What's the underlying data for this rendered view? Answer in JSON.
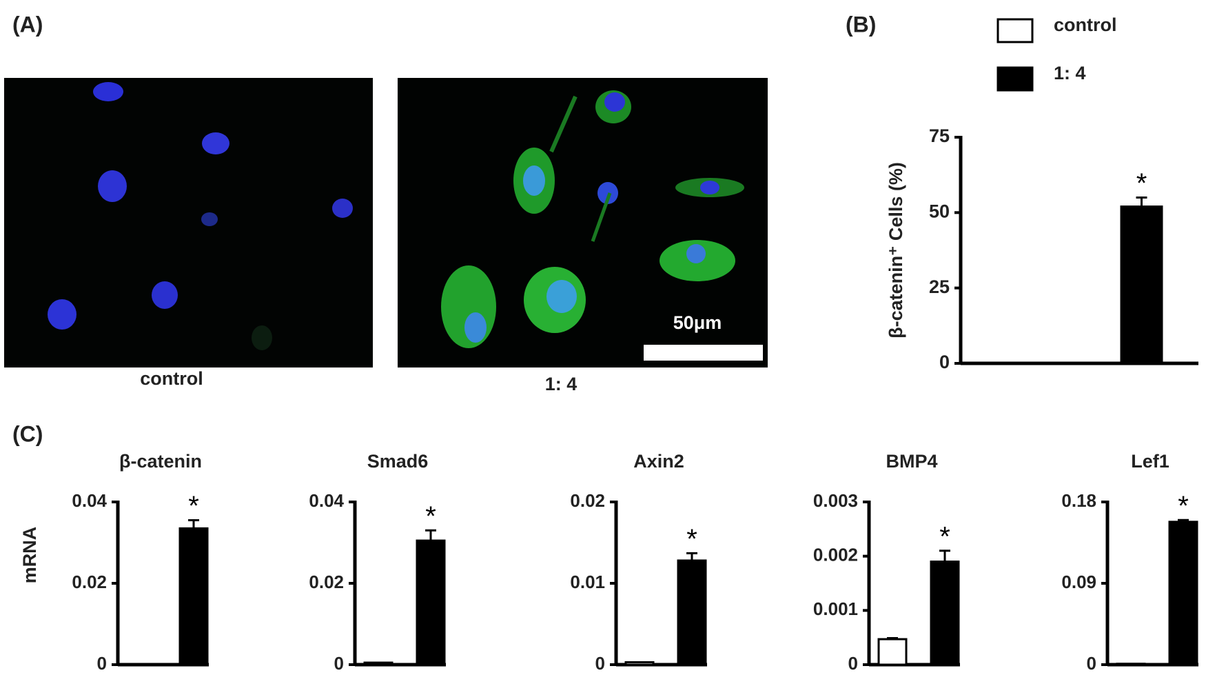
{
  "panel_labels": [
    "(A)",
    "(B)",
    "(C)"
  ],
  "images": [
    {
      "caption": "control"
    },
    {
      "caption": "1: 4",
      "scale_bar": "50μm"
    }
  ],
  "chart_data": [
    {
      "type": "bar",
      "ylabel": "β-catenin⁺ Cells  (%)",
      "legend": [
        {
          "label": "control",
          "color": "#ffffff"
        },
        {
          "label": "1: 4",
          "color": "#000000"
        }
      ],
      "values": [
        0,
        52
      ],
      "errors": [
        null,
        3
      ],
      "colors": [
        "#ffffff",
        "#000000"
      ],
      "annotation": "*",
      "ylim": [
        0,
        75
      ],
      "yticks": [
        0,
        25,
        50,
        75
      ]
    },
    {
      "type": "bar",
      "title": "β-catenin",
      "ylabel": "mRNA",
      "values": [
        0,
        0.0335
      ],
      "errors": [
        null,
        0.002
      ],
      "colors": [
        "#ffffff",
        "#000000"
      ],
      "annotation": "*",
      "ylim": [
        0,
        0.04
      ],
      "yticks": [
        0,
        0.02,
        0.04
      ]
    },
    {
      "type": "bar",
      "title": "Smad6",
      "values": [
        0.0005,
        0.0305
      ],
      "errors": [
        null,
        0.0025
      ],
      "colors": [
        "#ffffff",
        "#000000"
      ],
      "annotation": "*",
      "ylim": [
        0,
        0.04
      ],
      "yticks": [
        0,
        0.02,
        0.04
      ]
    },
    {
      "type": "bar",
      "title": "Axin2",
      "values": [
        0.0003,
        0.0128
      ],
      "errors": [
        null,
        0.0009
      ],
      "colors": [
        "#ffffff",
        "#000000"
      ],
      "annotation": "*",
      "ylim": [
        0,
        0.02
      ],
      "yticks": [
        0,
        0.01,
        0.02
      ]
    },
    {
      "type": "bar",
      "title": "BMP4",
      "values": [
        0.00047,
        0.0019
      ],
      "errors": [
        2e-05,
        0.0002
      ],
      "colors": [
        "#ffffff",
        "#000000"
      ],
      "annotation": "*",
      "ylim": [
        0,
        0.003
      ],
      "yticks": [
        0,
        0.001,
        0.002,
        0.003
      ]
    },
    {
      "type": "bar",
      "title": "Lef1",
      "values": [
        0.001,
        0.158
      ],
      "errors": [
        null,
        0.002
      ],
      "colors": [
        "#ffffff",
        "#000000"
      ],
      "annotation": "*",
      "ylim": [
        0,
        0.18
      ],
      "yticks": [
        0,
        0.09,
        0.18
      ]
    }
  ]
}
